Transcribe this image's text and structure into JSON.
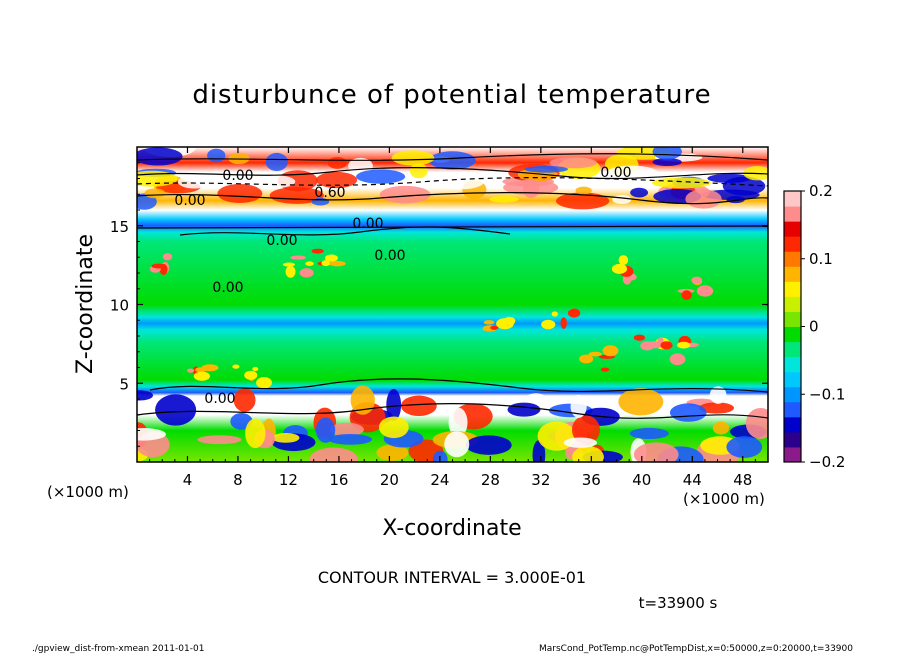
{
  "chart_data": {
    "type": "heatmap",
    "title": "disturbunce of potential temperature",
    "xlabel": "X-coordinate",
    "ylabel": "Z-coordinate",
    "x_unit": "(×1000 m)",
    "y_unit": "(×1000 m)",
    "xlim": [
      0,
      50
    ],
    "ylim": [
      0,
      20
    ],
    "x_ticks": [
      4,
      8,
      12,
      16,
      20,
      24,
      28,
      32,
      36,
      40,
      44,
      48
    ],
    "y_ticks": [
      5,
      10,
      15
    ],
    "colorbar": {
      "range": [
        -0.2,
        0.2
      ],
      "ticks": [
        {
          "value": 0.2,
          "label": "0.2"
        },
        {
          "value": 0.1,
          "label": "0.1"
        },
        {
          "value": 0.0,
          "label": "0"
        },
        {
          "value": -0.1,
          "label": "−0.1"
        },
        {
          "value": -0.2,
          "label": "−0.2"
        }
      ],
      "colors": [
        "#8b1a8b",
        "#2b008b",
        "#0000cd",
        "#1e5aff",
        "#0096ff",
        "#00c8ff",
        "#00e6dc",
        "#00e678",
        "#00dc00",
        "#78e600",
        "#c8f000",
        "#fff000",
        "#ffb400",
        "#ff7800",
        "#ff2800",
        "#e60000",
        "#ff8c8c",
        "#ffc8c8"
      ]
    },
    "contour_labels": [
      "0.00",
      "0.00",
      "0.60",
      "0.00",
      "0.00",
      "0.00",
      "0.00",
      "0.00",
      "0.00"
    ],
    "contour_interval_text": "CONTOUR INTERVAL = 3.000E-01",
    "time_text": "t=33900 s"
  },
  "footer": {
    "left": "./gpview_dist-from-xmean  2011-01-01",
    "right": "MarsCond_PotTemp.nc@PotTempDist,x=0:50000,z=0:20000,t=33900"
  }
}
